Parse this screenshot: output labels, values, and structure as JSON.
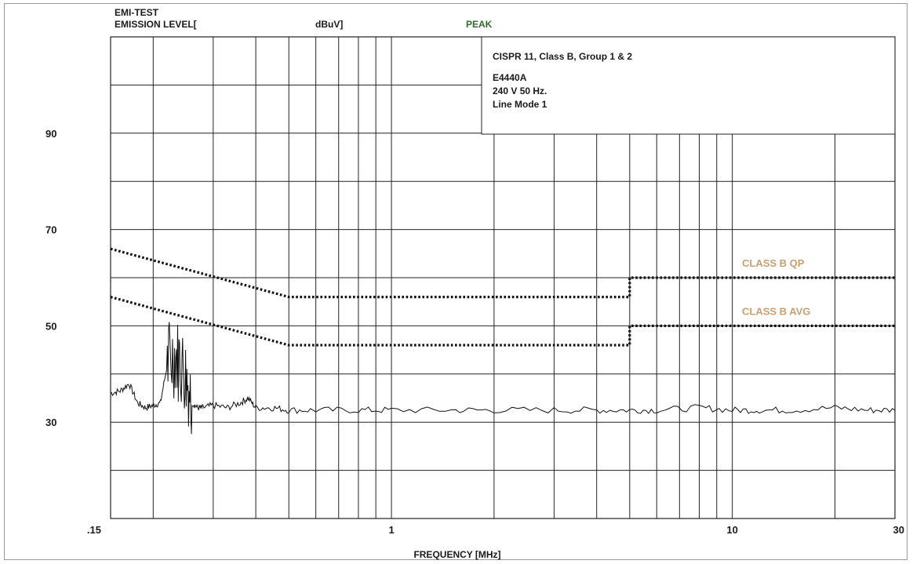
{
  "header": {
    "line1": "EMI-TEST",
    "line2": "EMISSION LEVEL[",
    "unit": "dBuV]",
    "mode": "PEAK"
  },
  "info_box": {
    "lines": [
      "CISPR 11, Class B, Group 1 & 2",
      "E4440A",
      "240 V 50 Hz.",
      "Line Mode 1"
    ]
  },
  "colors": {
    "limit_label": "#c8a070",
    "peak_text": "#2e6b2e",
    "grid": "#222222",
    "trace": "#111111"
  },
  "chart_data": {
    "type": "line",
    "title": "EMI-TEST",
    "xlabel": "FREQUENCY [MHz]",
    "ylabel": "EMISSION LEVEL[ dBuV]",
    "x_scale": "log",
    "xlim": [
      0.15,
      30
    ],
    "ylim": [
      10,
      110
    ],
    "x_tick_labels": [
      {
        "value": 0.15,
        "label": ".15"
      },
      {
        "value": 1,
        "label": "1"
      },
      {
        "value": 10,
        "label": "10"
      },
      {
        "value": 30,
        "label": "30"
      }
    ],
    "y_tick_labels": [
      {
        "value": 30,
        "label": "30"
      },
      {
        "value": 50,
        "label": "50"
      },
      {
        "value": 70,
        "label": "70"
      },
      {
        "value": 90,
        "label": "90"
      }
    ],
    "y_grid_step": 10,
    "grid": true,
    "series": [
      {
        "name": "CLASS B QP",
        "style": "dotted",
        "x": [
          0.15,
          0.5,
          5,
          5,
          30
        ],
        "y": [
          66,
          56,
          56,
          60,
          60
        ]
      },
      {
        "name": "CLASS B AVG",
        "style": "dotted",
        "x": [
          0.15,
          0.5,
          5,
          5,
          30
        ],
        "y": [
          56,
          46,
          46,
          50,
          50
        ]
      },
      {
        "name": "PEAK",
        "style": "solid",
        "x": [
          0.15,
          0.16,
          0.17,
          0.18,
          0.19,
          0.2,
          0.21,
          0.22,
          0.23,
          0.24,
          0.25,
          0.26,
          0.27,
          0.28,
          0.3,
          0.33,
          0.36,
          0.38,
          0.4,
          0.45,
          0.5,
          0.6,
          0.8,
          1,
          1.5,
          2,
          3,
          4,
          5,
          6,
          8,
          10,
          12,
          15,
          20,
          25,
          30
        ],
        "y": [
          36,
          36.5,
          38,
          34,
          33,
          33.5,
          34,
          42,
          44,
          43,
          40,
          34,
          33,
          33,
          33.5,
          33,
          34,
          35,
          33,
          33,
          32.5,
          32.5,
          32.5,
          32.5,
          32.5,
          32.5,
          32.5,
          32.5,
          32.5,
          32.5,
          33,
          32.5,
          32.5,
          32.5,
          33,
          32.5,
          32.5
        ]
      }
    ],
    "legend": "inline-right"
  }
}
